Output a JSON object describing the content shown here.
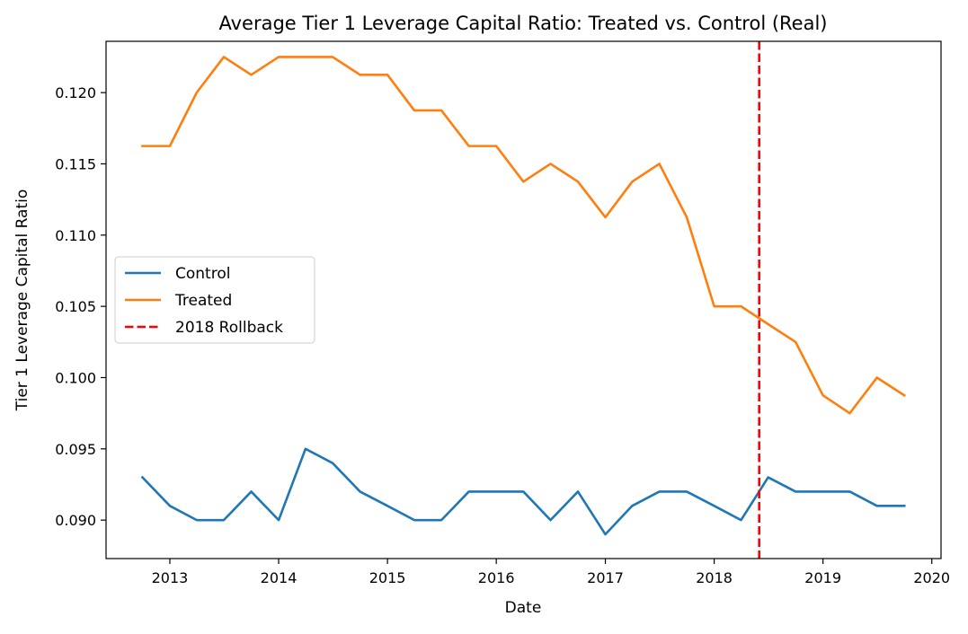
{
  "chart_data": {
    "type": "line",
    "title": "Average Tier 1 Leverage Capital Ratio: Treated vs. Control (Real)",
    "xlabel": "Date",
    "ylabel": "Tier 1 Leverage Capital Ratio",
    "xlim": [
      "2012-06-01",
      "2020-02-01"
    ],
    "ylim": [
      0.0873,
      0.1236
    ],
    "x_ticks": [
      {
        "date": "2013-01-01",
        "label": "2013"
      },
      {
        "date": "2014-01-01",
        "label": "2014"
      },
      {
        "date": "2015-01-01",
        "label": "2015"
      },
      {
        "date": "2016-01-01",
        "label": "2016"
      },
      {
        "date": "2017-01-01",
        "label": "2017"
      },
      {
        "date": "2018-01-01",
        "label": "2018"
      },
      {
        "date": "2019-01-01",
        "label": "2019"
      },
      {
        "date": "2020-01-01",
        "label": "2020"
      }
    ],
    "y_ticks": [
      {
        "value": 0.09,
        "label": "0.090"
      },
      {
        "value": 0.095,
        "label": "0.095"
      },
      {
        "value": 0.1,
        "label": "0.100"
      },
      {
        "value": 0.105,
        "label": "0.105"
      },
      {
        "value": 0.11,
        "label": "0.110"
      },
      {
        "value": 0.115,
        "label": "0.115"
      },
      {
        "value": 0.12,
        "label": "0.120"
      }
    ],
    "x": [
      "2012-10-01",
      "2013-01-01",
      "2013-04-01",
      "2013-07-01",
      "2013-10-01",
      "2014-01-01",
      "2014-04-01",
      "2014-07-01",
      "2014-10-01",
      "2015-01-01",
      "2015-04-01",
      "2015-07-01",
      "2015-10-01",
      "2016-01-01",
      "2016-04-01",
      "2016-07-01",
      "2016-10-01",
      "2017-01-01",
      "2017-04-01",
      "2017-07-01",
      "2017-10-01",
      "2018-01-01",
      "2018-04-01",
      "2018-07-01",
      "2018-10-01",
      "2019-01-01",
      "2019-04-01",
      "2019-07-01",
      "2019-10-01"
    ],
    "series": [
      {
        "name": "Control",
        "color": "#1f77b4",
        "style": "solid",
        "values": [
          0.093,
          0.091,
          0.09,
          0.09,
          0.092,
          0.09,
          0.095,
          0.094,
          0.092,
          0.091,
          0.09,
          0.09,
          0.092,
          0.092,
          0.092,
          0.09,
          0.092,
          0.089,
          0.091,
          0.092,
          0.092,
          0.091,
          0.09,
          0.093,
          0.092,
          0.092,
          0.092,
          0.091,
          0.091
        ]
      },
      {
        "name": "Treated",
        "color": "#ff7f0e",
        "style": "solid",
        "values": [
          0.11625,
          0.11625,
          0.12,
          0.1225,
          0.12125,
          0.1225,
          0.1225,
          0.1225,
          0.12125,
          0.12125,
          0.11875,
          0.11875,
          0.11625,
          0.11625,
          0.11375,
          0.115,
          0.11375,
          0.11125,
          0.11375,
          0.115,
          0.11125,
          0.105,
          0.105,
          0.10375,
          0.1025,
          0.09875,
          0.0975,
          0.1,
          0.09875
        ]
      }
    ],
    "vlines": [
      {
        "name": "2018 Rollback",
        "date": "2018-06-01",
        "color": "#ff0000",
        "style": "dashed"
      }
    ],
    "legend": {
      "position": "center-left",
      "entries": [
        {
          "label": "Control",
          "color": "#1f77b4",
          "style": "solid"
        },
        {
          "label": "Treated",
          "color": "#ff7f0e",
          "style": "solid"
        },
        {
          "label": "2018 Rollback",
          "color": "#ff0000",
          "style": "dashed"
        }
      ]
    },
    "grid": false
  }
}
